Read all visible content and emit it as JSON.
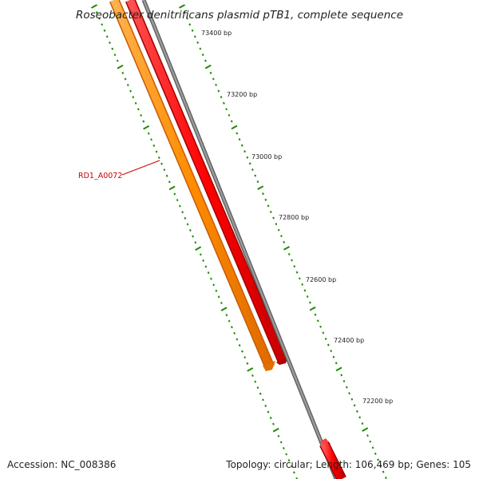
{
  "title": "Roseobacter denitrificans plasmid pTB1, complete sequence",
  "footer": {
    "accession": "Accession: NC_008386",
    "summary": "Topology: circular; Length: 106,469 bp; Genes: 105"
  },
  "ruler": {
    "labels": [
      "73400 bp",
      "73200 bp",
      "73000 bp",
      "72800 bp",
      "72600 bp",
      "72400 bp",
      "72200 bp"
    ]
  },
  "genes": [
    {
      "id": "RD1_A0072",
      "color": "#ff8c00",
      "strand": "outer"
    },
    {
      "id": "",
      "color": "#ff0000",
      "strand": "inner"
    }
  ],
  "colors": {
    "ticks": "#1e8a00",
    "backbone": "#808080",
    "label": "#cc0000"
  }
}
